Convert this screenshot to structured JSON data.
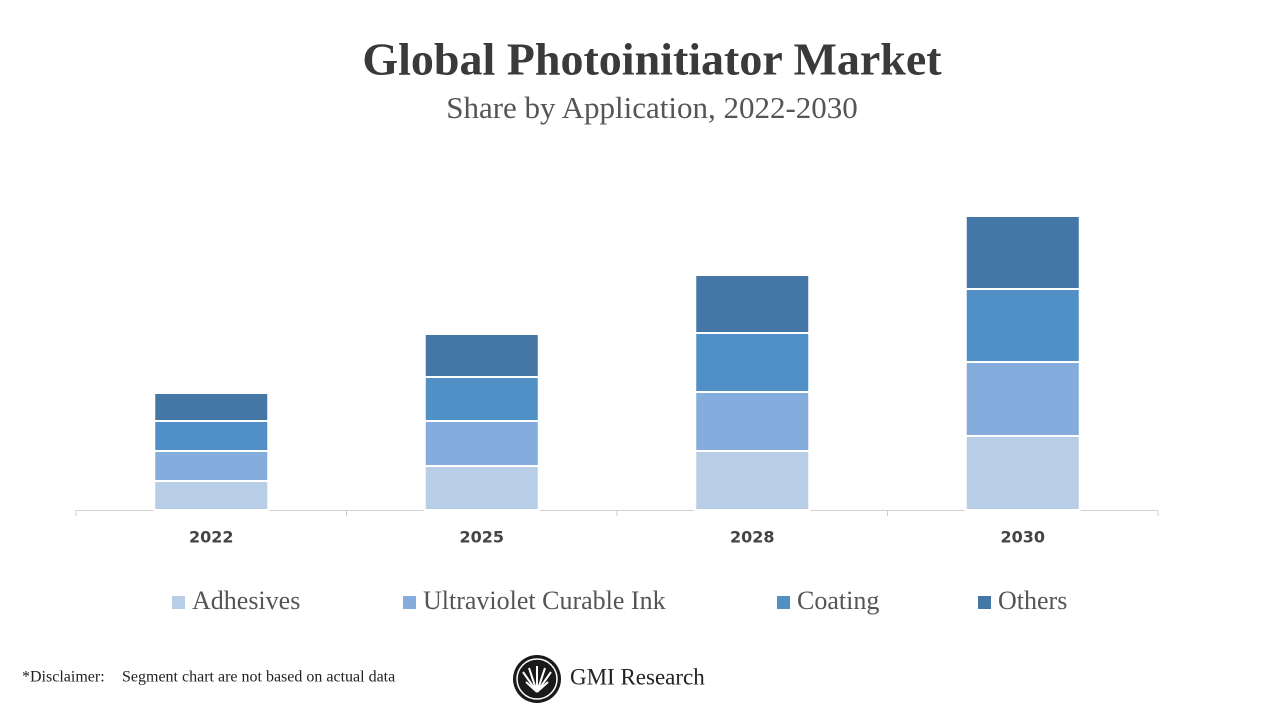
{
  "chart_data": {
    "type": "stacked_bar",
    "title": "Global Photoinitiator Market",
    "subtitle": "Share by Application, 2022-2030",
    "categories": [
      "2022",
      "2025",
      "2028",
      "2030"
    ],
    "series": [
      {
        "name": "Adhesives",
        "color": "#b8cde6",
        "values": [
          29,
          44,
          59,
          74
        ]
      },
      {
        "name": "Ultraviolet Curable Ink",
        "color": "#84acdc",
        "values": [
          30,
          45,
          59,
          74
        ]
      },
      {
        "name": "Coating",
        "color": "#5190c7",
        "values": [
          30,
          44,
          59,
          73
        ]
      },
      {
        "name": "Others",
        "color": "#4477a6",
        "values": [
          28,
          43,
          58,
          73
        ]
      }
    ],
    "ylim": [
      0,
      300
    ],
    "disclaimer_label": "*Disclaimer:",
    "disclaimer_text": "Segment chart are not based on actual data",
    "brand": "GMI Research"
  }
}
